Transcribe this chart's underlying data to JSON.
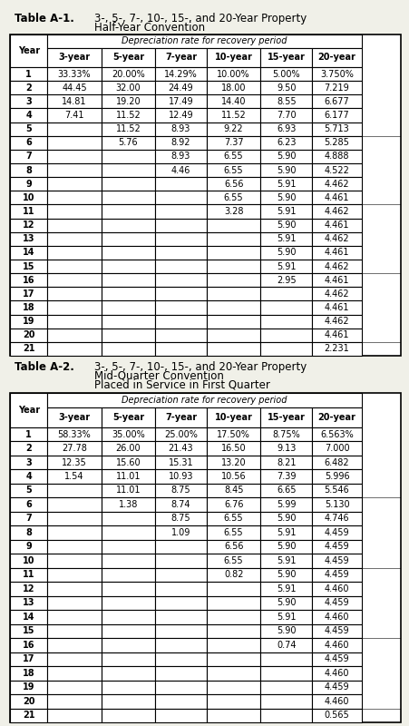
{
  "table1": {
    "title_label": "Table A-1.",
    "title_text": "3-, 5-, 7-, 10-, 15-, and 20-Year Property",
    "title_text2": "Half-Year Convention",
    "title_text3": null,
    "header1": "Depreciation rate for recovery period",
    "col_headers": [
      "3-year",
      "5-year",
      "7-year",
      "10-year",
      "15-year",
      "20-year"
    ],
    "rows": [
      [
        "1",
        "33.33%",
        "20.00%",
        "14.29%",
        "10.00%",
        "5.00%",
        "3.750%"
      ],
      [
        "2",
        "44.45",
        "32.00",
        "24.49",
        "18.00",
        "9.50",
        "7.219"
      ],
      [
        "3",
        "14.81",
        "19.20",
        "17.49",
        "14.40",
        "8.55",
        "6.677"
      ],
      [
        "4",
        "7.41",
        "11.52",
        "12.49",
        "11.52",
        "7.70",
        "6.177"
      ],
      [
        "5",
        "",
        "11.52",
        "8.93",
        "9.22",
        "6.93",
        "5.713"
      ],
      [
        "6",
        "",
        "5.76",
        "8.92",
        "7.37",
        "6.23",
        "5.285"
      ],
      [
        "7",
        "",
        "",
        "8.93",
        "6.55",
        "5.90",
        "4.888"
      ],
      [
        "8",
        "",
        "",
        "4.46",
        "6.55",
        "5.90",
        "4.522"
      ],
      [
        "9",
        "",
        "",
        "",
        "6.56",
        "5.91",
        "4.462"
      ],
      [
        "10",
        "",
        "",
        "",
        "6.55",
        "5.90",
        "4.461"
      ],
      [
        "11",
        "",
        "",
        "",
        "3.28",
        "5.91",
        "4.462"
      ],
      [
        "12",
        "",
        "",
        "",
        "",
        "5.90",
        "4.461"
      ],
      [
        "13",
        "",
        "",
        "",
        "",
        "5.91",
        "4.462"
      ],
      [
        "14",
        "",
        "",
        "",
        "",
        "5.90",
        "4.461"
      ],
      [
        "15",
        "",
        "",
        "",
        "",
        "5.91",
        "4.462"
      ],
      [
        "16",
        "",
        "",
        "",
        "",
        "2.95",
        "4.461"
      ],
      [
        "17",
        "",
        "",
        "",
        "",
        "",
        "4.462"
      ],
      [
        "18",
        "",
        "",
        "",
        "",
        "",
        "4.461"
      ],
      [
        "19",
        "",
        "",
        "",
        "",
        "",
        "4.462"
      ],
      [
        "20",
        "",
        "",
        "",
        "",
        "",
        "4.461"
      ],
      [
        "21",
        "",
        "",
        "",
        "",
        "",
        "2.231"
      ]
    ],
    "group_breaks": [
      5,
      10,
      15,
      20
    ]
  },
  "table2": {
    "title_label": "Table A-2.",
    "title_text": "3-, 5-, 7-, 10-, 15-, and 20-Year Property",
    "title_text2": "Mid-Quarter Convention",
    "title_text3": "Placed in Service in First Quarter",
    "header1": "Depreciation rate for recovery period",
    "col_headers": [
      "3-year",
      "5-year",
      "7-year",
      "10-year",
      "15-year",
      "20-year"
    ],
    "rows": [
      [
        "1",
        "58.33%",
        "35.00%",
        "25.00%",
        "17.50%",
        "8.75%",
        "6.563%"
      ],
      [
        "2",
        "27.78",
        "26.00",
        "21.43",
        "16.50",
        "9.13",
        "7.000"
      ],
      [
        "3",
        "12.35",
        "15.60",
        "15.31",
        "13.20",
        "8.21",
        "6.482"
      ],
      [
        "4",
        "1.54",
        "11.01",
        "10.93",
        "10.56",
        "7.39",
        "5.996"
      ],
      [
        "5",
        "",
        "11.01",
        "8.75",
        "8.45",
        "6.65",
        "5.546"
      ],
      [
        "6",
        "",
        "1.38",
        "8.74",
        "6.76",
        "5.99",
        "5.130"
      ],
      [
        "7",
        "",
        "",
        "8.75",
        "6.55",
        "5.90",
        "4.746"
      ],
      [
        "8",
        "",
        "",
        "1.09",
        "6.55",
        "5.91",
        "4.459"
      ],
      [
        "9",
        "",
        "",
        "",
        "6.56",
        "5.90",
        "4.459"
      ],
      [
        "10",
        "",
        "",
        "",
        "6.55",
        "5.91",
        "4.459"
      ],
      [
        "11",
        "",
        "",
        "",
        "0.82",
        "5.90",
        "4.459"
      ],
      [
        "12",
        "",
        "",
        "",
        "",
        "5.91",
        "4.460"
      ],
      [
        "13",
        "",
        "",
        "",
        "",
        "5.90",
        "4.459"
      ],
      [
        "14",
        "",
        "",
        "",
        "",
        "5.91",
        "4.460"
      ],
      [
        "15",
        "",
        "",
        "",
        "",
        "5.90",
        "4.459"
      ],
      [
        "16",
        "",
        "",
        "",
        "",
        "0.74",
        "4.460"
      ],
      [
        "17",
        "",
        "",
        "",
        "",
        "",
        "4.459"
      ],
      [
        "18",
        "",
        "",
        "",
        "",
        "",
        "4.460"
      ],
      [
        "19",
        "",
        "",
        "",
        "",
        "",
        "4.459"
      ],
      [
        "20",
        "",
        "",
        "",
        "",
        "",
        "4.460"
      ],
      [
        "21",
        "",
        "",
        "",
        "",
        "",
        "0.565"
      ]
    ],
    "group_breaks": [
      5,
      10,
      15,
      20
    ]
  },
  "bg_color": "#f0f0e8",
  "border_color": "#000000",
  "font_size": 7.0,
  "title_font_size": 8.5
}
